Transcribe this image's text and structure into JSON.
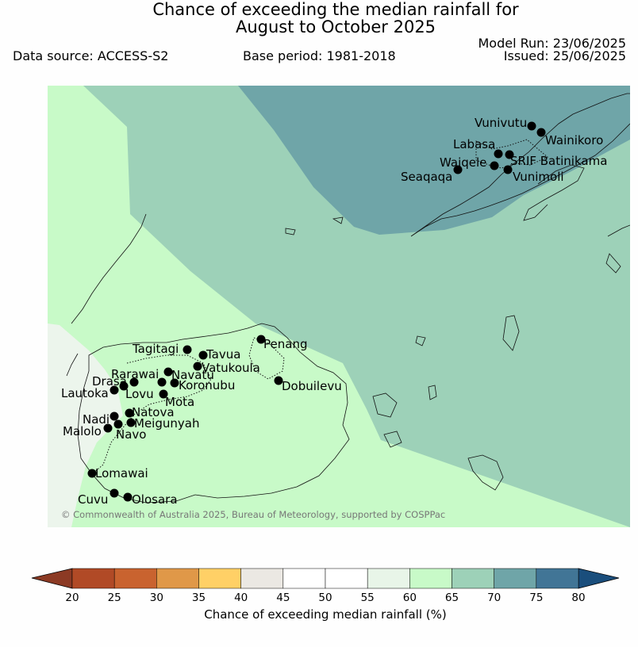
{
  "title": {
    "line1": "Chance of exceeding the median rainfall for",
    "line2": "August to October 2025"
  },
  "header": {
    "data_source": "Data source: ACCESS-S2",
    "base_period": "Base period: 1981-2018",
    "model_run": "Model Run: 23/06/2025",
    "issued": "Issued: 25/06/2025"
  },
  "map": {
    "region": "Fiji",
    "copyright": "© Commonwealth of Australia 2025, Bureau of Meteorology, supported by COSPPac",
    "places": [
      "Vunivutu",
      "Wainikoro",
      "Labasa",
      "SRIF Batinikama",
      "Waiqele",
      "Seaqaqa",
      "Vunimoli",
      "Tagitagi",
      "Penang",
      "Tavua",
      "Vatukoula",
      "Rarawai",
      "Navatu",
      "Drasa",
      "Koronubu",
      "Lautoka",
      "Lovu",
      "Mota",
      "Dobuilevu",
      "Nadi",
      "Natova",
      "Meigunyah",
      "Malolo",
      "Navo",
      "Lomawai",
      "Cuvu",
      "Olosara"
    ]
  },
  "legend": {
    "label": "Chance of exceeding median rainfall (%)",
    "ticks": [
      "20",
      "25",
      "30",
      "35",
      "40",
      "45",
      "50",
      "55",
      "60",
      "65",
      "70",
      "75",
      "80"
    ],
    "colors": [
      "#b14a26",
      "#c9632f",
      "#e09848",
      "#ffd066",
      "#ebe8e3",
      "#ffffff",
      "#ffffff",
      "#e8f5e8",
      "#c8fac8",
      "#9dd1b8",
      "#6fa5a8",
      "#417596"
    ],
    "extend_low_color": "#8c3a24",
    "extend_high_color": "#1a4e7c"
  }
}
